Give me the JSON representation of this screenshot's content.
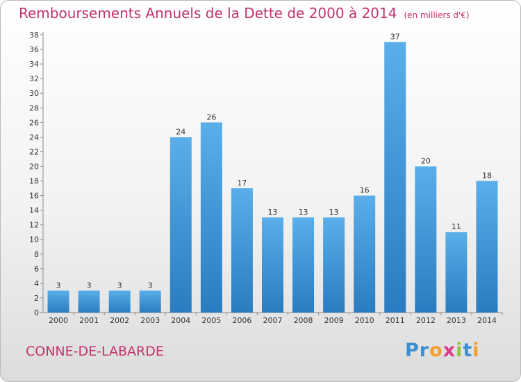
{
  "header": {
    "title": "Remboursements Annuels de la Dette de 2000 à 2014",
    "subtitle": "(en milliers d'€)"
  },
  "footer": {
    "commune": "CONNE-DE-LABARDE",
    "logo_text": "Proxiti",
    "logo_letters": [
      {
        "ch": "P",
        "color": "#3d8fd1"
      },
      {
        "ch": "r",
        "color": "#3d8fd1"
      },
      {
        "ch": "o",
        "color": "#f3a02b"
      },
      {
        "ch": "x",
        "color": "#d93c8a"
      },
      {
        "ch": "i",
        "color": "#8dc63f"
      },
      {
        "ch": "t",
        "color": "#3d8fd1"
      },
      {
        "ch": "i",
        "color": "#f3a02b"
      }
    ]
  },
  "colors": {
    "title": "#c0336d",
    "bar_top": "#5aaee9",
    "bar_bottom": "#2a7cc0"
  },
  "chart_data": {
    "type": "bar",
    "title": "Remboursements Annuels de la Dette de 2000 à 2014",
    "subtitle": "(en milliers d'€)",
    "xlabel": "",
    "ylabel": "",
    "categories": [
      "2000",
      "2001",
      "2002",
      "2003",
      "2004",
      "2005",
      "2006",
      "2007",
      "2008",
      "2009",
      "2010",
      "2011",
      "2012",
      "2013",
      "2014"
    ],
    "values": [
      3,
      3,
      3,
      3,
      24,
      26,
      17,
      13,
      13,
      13,
      16,
      37,
      20,
      11,
      18
    ],
    "ylim": [
      0,
      38
    ],
    "yticks": [
      0,
      2,
      4,
      6,
      8,
      10,
      12,
      14,
      16,
      18,
      20,
      22,
      24,
      26,
      28,
      30,
      32,
      34,
      36,
      38
    ],
    "grid": false,
    "legend": "none",
    "data_labels": true
  }
}
